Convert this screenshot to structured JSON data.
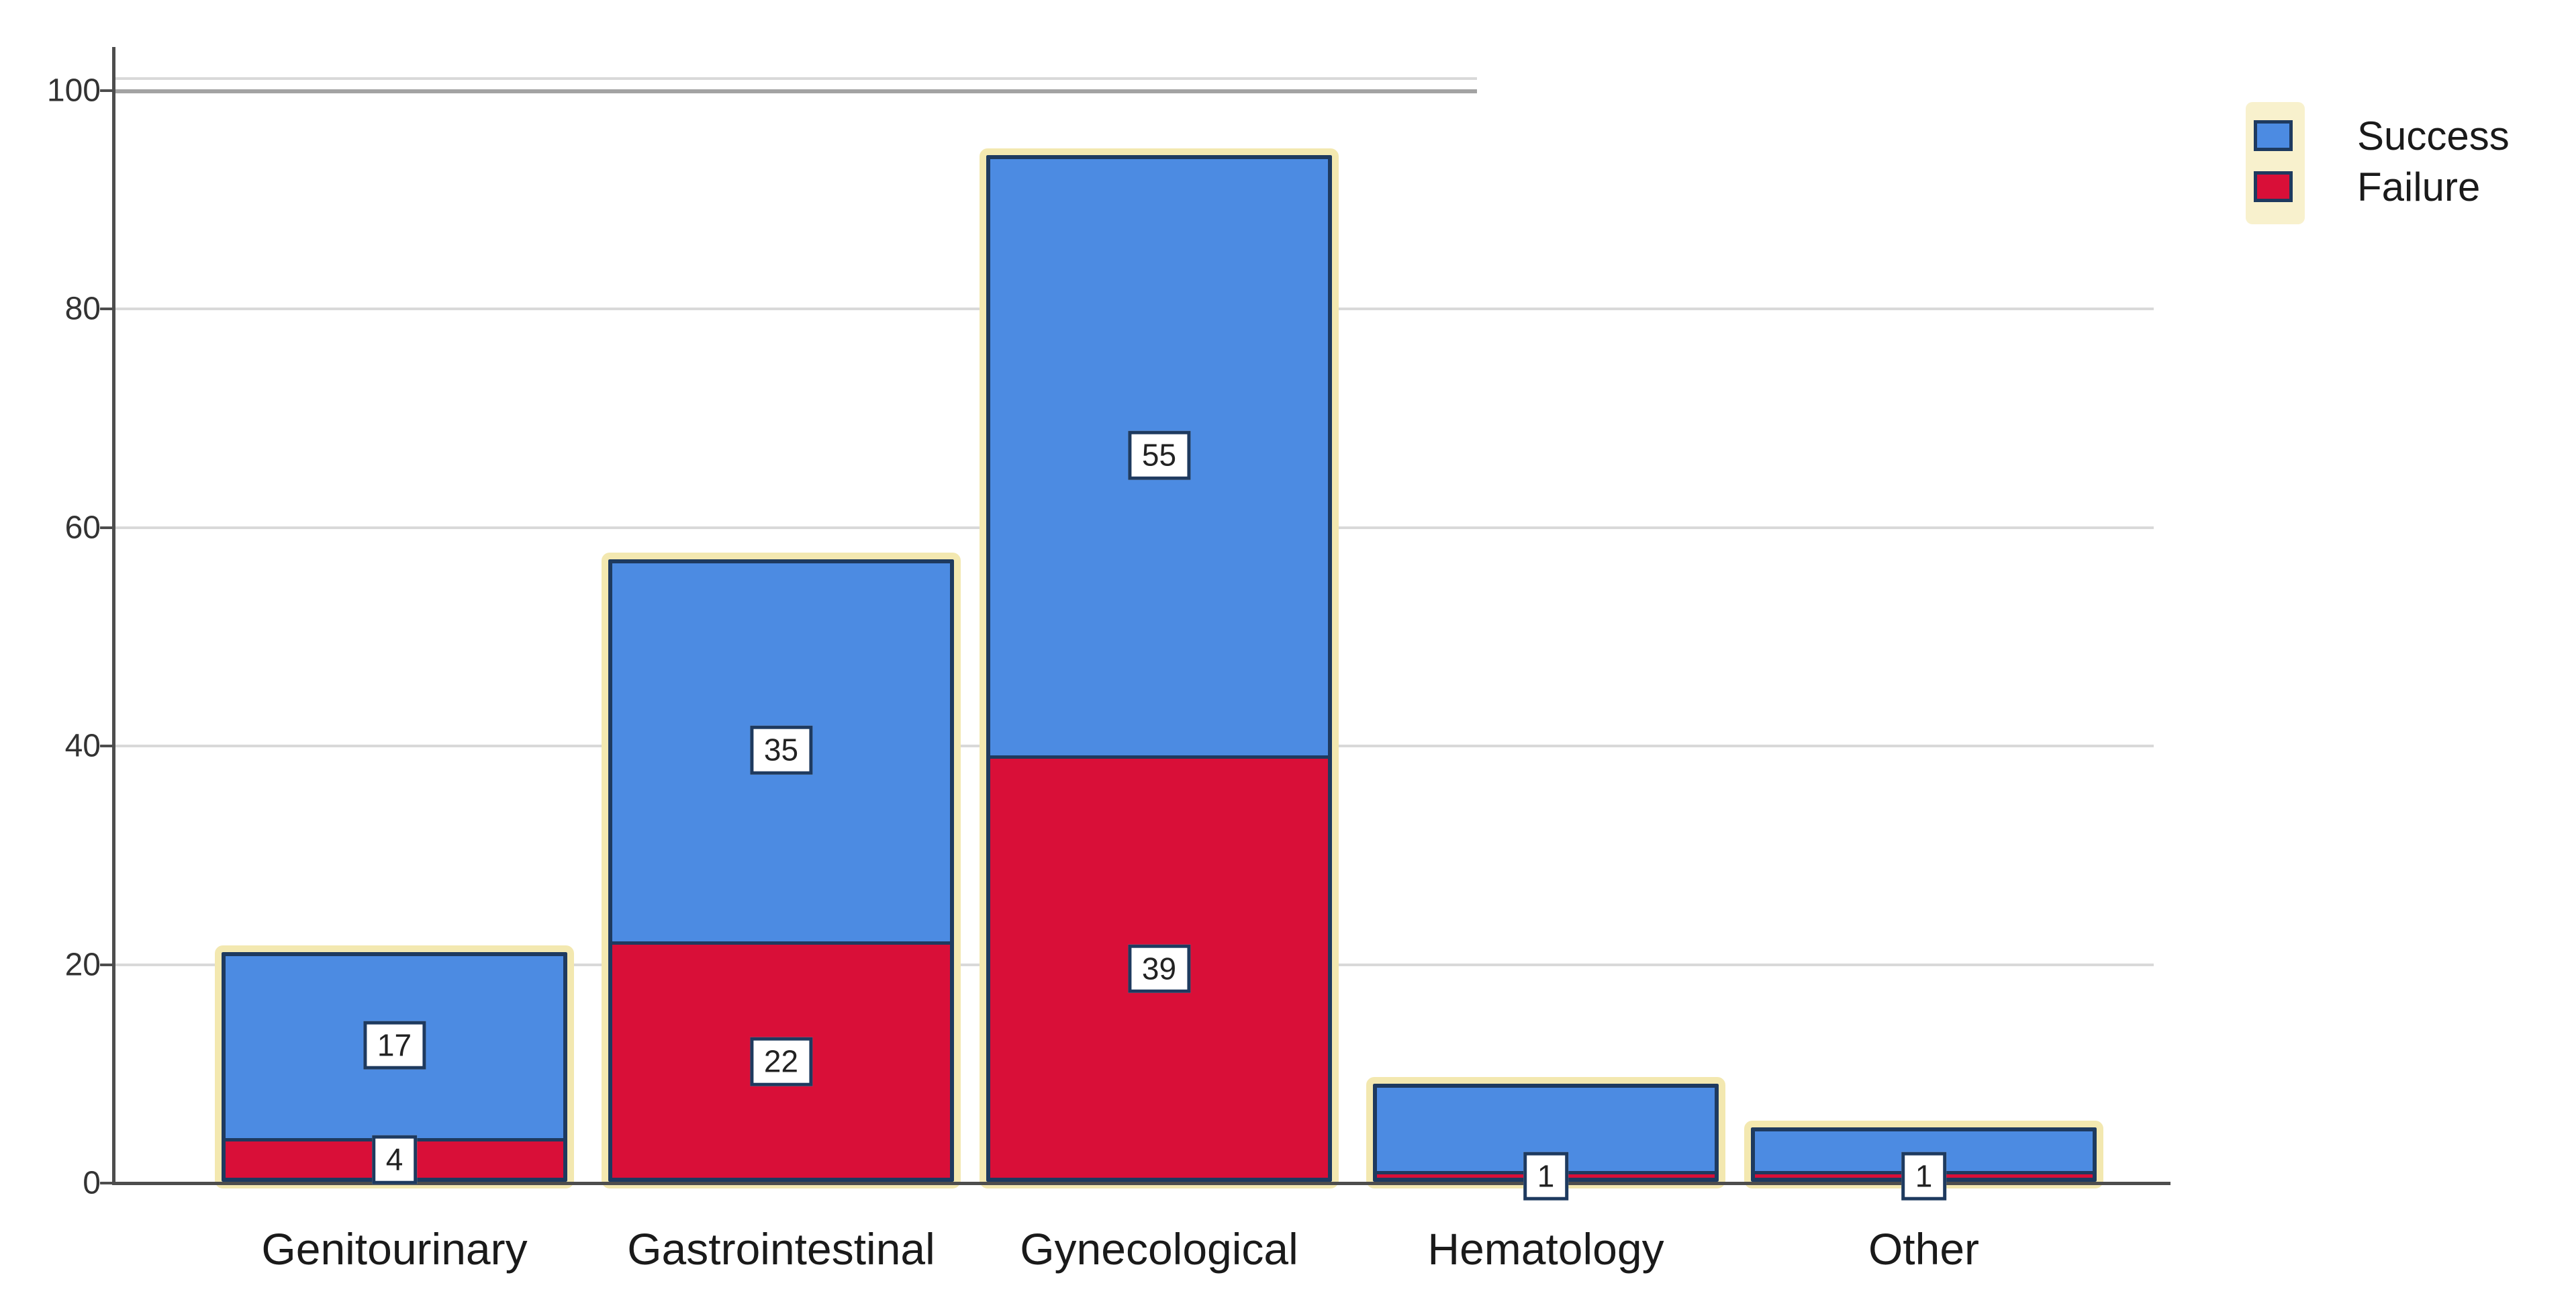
{
  "chart_data": {
    "type": "bar",
    "stacked": true,
    "title": "",
    "xlabel": "",
    "ylabel": "",
    "categories": [
      "Genitourinary",
      "Gastrointestinal",
      "Gynecological",
      "Hematology",
      "Other"
    ],
    "series": [
      {
        "name": "Success",
        "color": "#4c8be2",
        "values": [
          17,
          35,
          55,
          8,
          4
        ],
        "visible_labels": [
          "17",
          "35",
          "55",
          "",
          ""
        ]
      },
      {
        "name": "Failure",
        "color": "#d90f38",
        "values": [
          4,
          22,
          39,
          1,
          1
        ],
        "visible_labels": [
          "4",
          "22",
          "39",
          "1",
          "1"
        ]
      }
    ],
    "totals": [
      21,
      57,
      94,
      9,
      5
    ],
    "ylim": [
      0,
      100
    ],
    "yticks": [
      0,
      20,
      40,
      60,
      80,
      100
    ],
    "grid": "horizontal",
    "legend_position": "top-right",
    "legend_entries": [
      "Success",
      "Failure"
    ]
  },
  "colors": {
    "success": "#4c8be2",
    "failure": "#d90f38",
    "bar_border": "#1e3a5f",
    "bar_glow": "#f3e8b0",
    "gridline": "#d9d9d9",
    "gridline_dark": "#a3a3a3",
    "axis": "#4d4d4d",
    "value_box_bg": "#ffffff",
    "text": "#1a1a1a"
  }
}
